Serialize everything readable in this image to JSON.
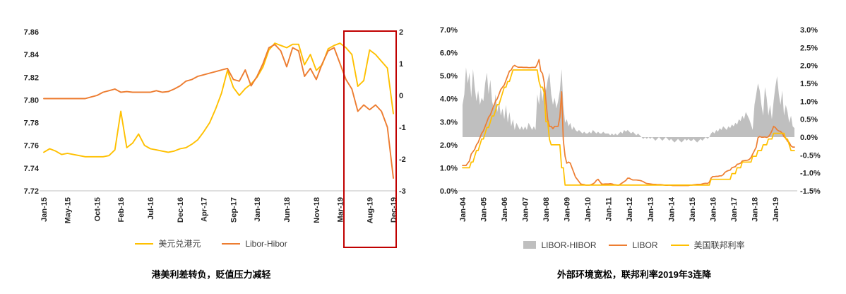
{
  "colors": {
    "yellow": "#FFC000",
    "orange": "#ED7D31",
    "gray": "#BFBFBF",
    "highlight": "#C00000",
    "axis_text": "#262626",
    "axis_line": "#BFBFBF"
  },
  "chart_data": [
    {
      "id": "usd-hkd-chart",
      "type": "line",
      "caption": "港美利差转负，贬值压力减轻",
      "x_unit": "month",
      "x_start": "Jan-15",
      "x_end": "Dec-19",
      "x_ticks": [
        {
          "label": "Jan-15",
          "i": 0
        },
        {
          "label": "May-15",
          "i": 4
        },
        {
          "label": "Oct-15",
          "i": 9
        },
        {
          "label": "Feb-16",
          "i": 13
        },
        {
          "label": "Jul-16",
          "i": 18
        },
        {
          "label": "Dec-16",
          "i": 23
        },
        {
          "label": "Apr-17",
          "i": 27
        },
        {
          "label": "Sep-17",
          "i": 32
        },
        {
          "label": "Jan-18",
          "i": 36
        },
        {
          "label": "Jun-18",
          "i": 41
        },
        {
          "label": "Nov-18",
          "i": 46
        },
        {
          "label": "Mar-19",
          "i": 50
        },
        {
          "label": "Aug-19",
          "i": 55
        },
        {
          "label": "Dec-19",
          "i": 59
        }
      ],
      "left_axis": {
        "min": 7.72,
        "max": 7.86,
        "ticks": [
          "7.86",
          "7.84",
          "7.82",
          "7.80",
          "7.78",
          "7.76",
          "7.74",
          "7.72"
        ]
      },
      "right_axis": {
        "min": -3,
        "max": 2,
        "ticks": [
          "2",
          "1",
          "0",
          "-1",
          "-2",
          "-3"
        ]
      },
      "series": [
        {
          "id": "usd-hkd",
          "name": "美元兑港元",
          "axis": "left",
          "style": "line",
          "color_key": "yellow",
          "values": [
            7.754,
            7.757,
            7.755,
            7.752,
            7.753,
            7.752,
            7.751,
            7.75,
            7.75,
            7.75,
            7.75,
            7.751,
            7.756,
            7.79,
            7.758,
            7.762,
            7.77,
            7.76,
            7.757,
            7.756,
            7.755,
            7.754,
            7.755,
            7.757,
            7.758,
            7.761,
            7.765,
            7.772,
            7.78,
            7.792,
            7.806,
            7.826,
            7.811,
            7.804,
            7.81,
            7.814,
            7.82,
            7.829,
            7.844,
            7.85,
            7.848,
            7.846,
            7.849,
            7.849,
            7.831,
            7.84,
            7.826,
            7.831,
            7.845,
            7.848,
            7.85,
            7.846,
            7.84,
            7.812,
            7.817,
            7.844,
            7.84,
            7.834,
            7.828,
            7.788
          ]
        },
        {
          "id": "libor-hibor",
          "name": "Libor-Hibor",
          "axis": "right",
          "style": "line",
          "color_key": "orange",
          "values": [
            -0.1,
            -0.1,
            -0.1,
            -0.1,
            -0.1,
            -0.1,
            -0.1,
            -0.1,
            -0.05,
            0.0,
            0.1,
            0.15,
            0.2,
            0.1,
            0.12,
            0.1,
            0.1,
            0.1,
            0.1,
            0.15,
            0.1,
            0.12,
            0.2,
            0.3,
            0.45,
            0.5,
            0.6,
            0.65,
            0.7,
            0.75,
            0.8,
            0.85,
            0.5,
            0.45,
            0.8,
            0.3,
            0.6,
            1.0,
            1.5,
            1.6,
            1.4,
            0.9,
            1.5,
            1.4,
            0.6,
            0.85,
            0.5,
            1.0,
            1.4,
            1.5,
            1.0,
            0.5,
            0.2,
            -0.5,
            -0.3,
            -0.45,
            -0.3,
            -0.5,
            -1.0,
            -2.6
          ]
        }
      ],
      "highlight_box": {
        "from": "Aug-19",
        "to": "Dec-19",
        "color_key": "highlight"
      }
    },
    {
      "id": "rates-chart",
      "type": "line-area",
      "caption": "外部环境宽松，联邦利率2019年3连降",
      "x_unit": "month",
      "x_start": "Jan-04",
      "x_end": "Dec-19",
      "x_ticks": [
        {
          "label": "Jan-04",
          "i": 0
        },
        {
          "label": "Jan-05",
          "i": 12
        },
        {
          "label": "Jan-06",
          "i": 24
        },
        {
          "label": "Jan-07",
          "i": 36
        },
        {
          "label": "Jan-08",
          "i": 48
        },
        {
          "label": "Jan-09",
          "i": 60
        },
        {
          "label": "Jan-10",
          "i": 72
        },
        {
          "label": "Jan-11",
          "i": 84
        },
        {
          "label": "Jan-12",
          "i": 96
        },
        {
          "label": "Jan-13",
          "i": 108
        },
        {
          "label": "Jan-14",
          "i": 120
        },
        {
          "label": "Jan-15",
          "i": 132
        },
        {
          "label": "Jan-16",
          "i": 144
        },
        {
          "label": "Jan-17",
          "i": 156
        },
        {
          "label": "Jan-18",
          "i": 168
        },
        {
          "label": "Jan-19",
          "i": 180
        }
      ],
      "left_axis": {
        "min": 0,
        "max": 7,
        "ticks": [
          "7.0%",
          "6.0%",
          "5.0%",
          "4.0%",
          "3.0%",
          "2.0%",
          "1.0%",
          "0.0%"
        ]
      },
      "right_axis": {
        "min": -1.5,
        "max": 3,
        "ticks": [
          "3.0%",
          "2.5%",
          "2.0%",
          "1.5%",
          "1.0%",
          "0.5%",
          "0.0%",
          "-0.5%",
          "-1.0%",
          "-1.5%"
        ]
      },
      "series": [
        {
          "id": "libor-hibor-spread",
          "name": "LIBOR-HIBOR",
          "axis": "right",
          "style": "area",
          "color_key": "gray",
          "values": [
            0.9,
            1.2,
            1.95,
            1.5,
            1.8,
            1.1,
            1.9,
            1.4,
            1.0,
            1.3,
            0.9,
            1.1,
            1.0,
            1.5,
            1.8,
            1.2,
            1.6,
            1.0,
            0.8,
            1.2,
            0.7,
            1.0,
            0.6,
            0.8,
            0.5,
            0.9,
            0.4,
            0.7,
            0.3,
            0.5,
            0.2,
            0.4,
            0.3,
            0.2,
            0.3,
            0.2,
            0.3,
            0.2,
            0.4,
            0.3,
            0.2,
            0.3,
            0.2,
            1.2,
            0.9,
            1.4,
            1.0,
            1.5,
            1.3,
            1.6,
            1.8,
            1.2,
            0.9,
            1.1,
            0.8,
            1.0,
            1.3,
            1.9,
            0.9,
            0.4,
            0.5,
            0.3,
            0.4,
            0.2,
            0.3,
            0.2,
            0.15,
            0.2,
            0.15,
            0.1,
            0.15,
            0.1,
            0.1,
            0.15,
            0.1,
            0.2,
            0.15,
            0.1,
            0.15,
            0.1,
            0.1,
            0.15,
            0.1,
            0.1,
            0.1,
            0.05,
            0.1,
            0.05,
            0.1,
            0.05,
            0.1,
            0.15,
            0.1,
            0.2,
            0.15,
            0.2,
            0.15,
            0.1,
            0.15,
            0.1,
            0.05,
            0.1,
            0.05,
            0.0,
            -0.05,
            0.0,
            -0.05,
            0.0,
            -0.05,
            0.0,
            -0.05,
            -0.1,
            -0.05,
            0.0,
            -0.05,
            -0.1,
            -0.05,
            0.0,
            -0.05,
            -0.1,
            -0.05,
            -0.1,
            -0.15,
            -0.1,
            -0.05,
            -0.1,
            -0.15,
            -0.1,
            -0.05,
            -0.1,
            -0.05,
            -0.1,
            -0.1,
            -0.05,
            -0.1,
            -0.15,
            -0.1,
            -0.05,
            -0.1,
            -0.05,
            0.0,
            -0.05,
            0.0,
            0.1,
            0.15,
            0.1,
            0.2,
            0.15,
            0.25,
            0.2,
            0.3,
            0.25,
            0.2,
            0.3,
            0.25,
            0.35,
            0.3,
            0.4,
            0.35,
            0.5,
            0.45,
            0.6,
            0.5,
            0.7,
            0.6,
            0.5,
            0.35,
            0.2,
            0.9,
            1.2,
            1.5,
            1.3,
            0.9,
            0.6,
            1.4,
            1.1,
            0.6,
            0.9,
            0.5,
            1.0,
            1.4,
            1.7,
            1.2,
            0.9,
            1.3,
            0.6,
            0.9,
            0.7,
            0.4,
            0.6,
            0.3,
            0.25
          ]
        },
        {
          "id": "libor",
          "name": "LIBOR",
          "axis": "left",
          "style": "line",
          "color_key": "orange",
          "values": [
            1.1,
            1.1,
            1.1,
            1.2,
            1.3,
            1.6,
            1.7,
            1.8,
            2.0,
            2.1,
            2.3,
            2.5,
            2.6,
            2.8,
            3.0,
            3.2,
            3.3,
            3.5,
            3.7,
            3.9,
            4.0,
            4.2,
            4.4,
            4.5,
            4.6,
            4.8,
            5.0,
            5.2,
            5.25,
            5.4,
            5.45,
            5.4,
            5.37,
            5.37,
            5.37,
            5.36,
            5.36,
            5.36,
            5.35,
            5.35,
            5.36,
            5.36,
            5.36,
            5.5,
            5.7,
            5.2,
            5.1,
            4.7,
            3.9,
            3.1,
            2.8,
            2.8,
            2.7,
            2.8,
            2.8,
            2.8,
            3.2,
            4.3,
            2.2,
            1.5,
            1.2,
            1.25,
            1.2,
            1.0,
            0.8,
            0.6,
            0.5,
            0.4,
            0.3,
            0.28,
            0.27,
            0.25,
            0.25,
            0.25,
            0.27,
            0.3,
            0.35,
            0.45,
            0.5,
            0.4,
            0.3,
            0.29,
            0.3,
            0.3,
            0.3,
            0.31,
            0.3,
            0.27,
            0.26,
            0.25,
            0.25,
            0.3,
            0.35,
            0.4,
            0.45,
            0.55,
            0.55,
            0.5,
            0.47,
            0.47,
            0.47,
            0.46,
            0.45,
            0.43,
            0.4,
            0.35,
            0.32,
            0.31,
            0.3,
            0.29,
            0.28,
            0.28,
            0.27,
            0.27,
            0.27,
            0.26,
            0.25,
            0.24,
            0.24,
            0.25,
            0.24,
            0.23,
            0.23,
            0.23,
            0.23,
            0.23,
            0.23,
            0.23,
            0.23,
            0.23,
            0.23,
            0.25,
            0.25,
            0.26,
            0.27,
            0.28,
            0.28,
            0.28,
            0.3,
            0.32,
            0.33,
            0.32,
            0.37,
            0.55,
            0.62,
            0.62,
            0.63,
            0.63,
            0.65,
            0.65,
            0.7,
            0.8,
            0.85,
            0.88,
            0.9,
            1.0,
            1.03,
            1.05,
            1.15,
            1.17,
            1.2,
            1.3,
            1.31,
            1.32,
            1.33,
            1.36,
            1.45,
            1.6,
            1.75,
            1.9,
            2.3,
            2.36,
            2.33,
            2.33,
            2.34,
            2.32,
            2.35,
            2.45,
            2.6,
            2.8,
            2.75,
            2.65,
            2.6,
            2.58,
            2.5,
            2.35,
            2.3,
            2.15,
            2.1,
            1.95,
            1.9,
            1.9
          ]
        },
        {
          "id": "fed-funds",
          "name": "美国联邦利率",
          "axis": "left",
          "style": "line",
          "color_key": "yellow",
          "values": [
            1.0,
            1.0,
            1.0,
            1.0,
            1.0,
            1.25,
            1.25,
            1.5,
            1.75,
            1.75,
            2.0,
            2.25,
            2.25,
            2.5,
            2.75,
            2.75,
            3.0,
            3.25,
            3.25,
            3.5,
            3.75,
            3.75,
            4.0,
            4.25,
            4.5,
            4.5,
            4.75,
            4.75,
            5.0,
            5.25,
            5.25,
            5.25,
            5.25,
            5.25,
            5.25,
            5.25,
            5.25,
            5.25,
            5.25,
            5.25,
            5.25,
            5.25,
            5.25,
            5.25,
            4.75,
            4.5,
            4.5,
            4.25,
            3.0,
            3.0,
            2.25,
            2.0,
            2.0,
            2.0,
            2.0,
            2.0,
            2.0,
            1.0,
            1.0,
            0.25,
            0.25,
            0.25,
            0.25,
            0.25,
            0.25,
            0.25,
            0.25,
            0.25,
            0.25,
            0.25,
            0.25,
            0.25,
            0.25,
            0.25,
            0.25,
            0.25,
            0.25,
            0.25,
            0.25,
            0.25,
            0.25,
            0.25,
            0.25,
            0.25,
            0.25,
            0.25,
            0.25,
            0.25,
            0.25,
            0.25,
            0.25,
            0.25,
            0.25,
            0.25,
            0.25,
            0.25,
            0.25,
            0.25,
            0.25,
            0.25,
            0.25,
            0.25,
            0.25,
            0.25,
            0.25,
            0.25,
            0.25,
            0.25,
            0.25,
            0.25,
            0.25,
            0.25,
            0.25,
            0.25,
            0.25,
            0.25,
            0.25,
            0.25,
            0.25,
            0.25,
            0.25,
            0.25,
            0.25,
            0.25,
            0.25,
            0.25,
            0.25,
            0.25,
            0.25,
            0.25,
            0.25,
            0.25,
            0.25,
            0.25,
            0.25,
            0.25,
            0.25,
            0.25,
            0.25,
            0.25,
            0.25,
            0.25,
            0.25,
            0.5,
            0.5,
            0.5,
            0.5,
            0.5,
            0.5,
            0.5,
            0.5,
            0.5,
            0.5,
            0.5,
            0.5,
            0.75,
            0.75,
            0.75,
            1.0,
            1.0,
            1.0,
            1.25,
            1.25,
            1.25,
            1.25,
            1.25,
            1.25,
            1.5,
            1.5,
            1.5,
            1.75,
            1.75,
            1.75,
            2.0,
            2.0,
            2.0,
            2.25,
            2.25,
            2.25,
            2.5,
            2.5,
            2.5,
            2.5,
            2.5,
            2.5,
            2.5,
            2.25,
            2.25,
            2.0,
            1.75,
            1.75,
            1.75
          ]
        }
      ]
    }
  ]
}
